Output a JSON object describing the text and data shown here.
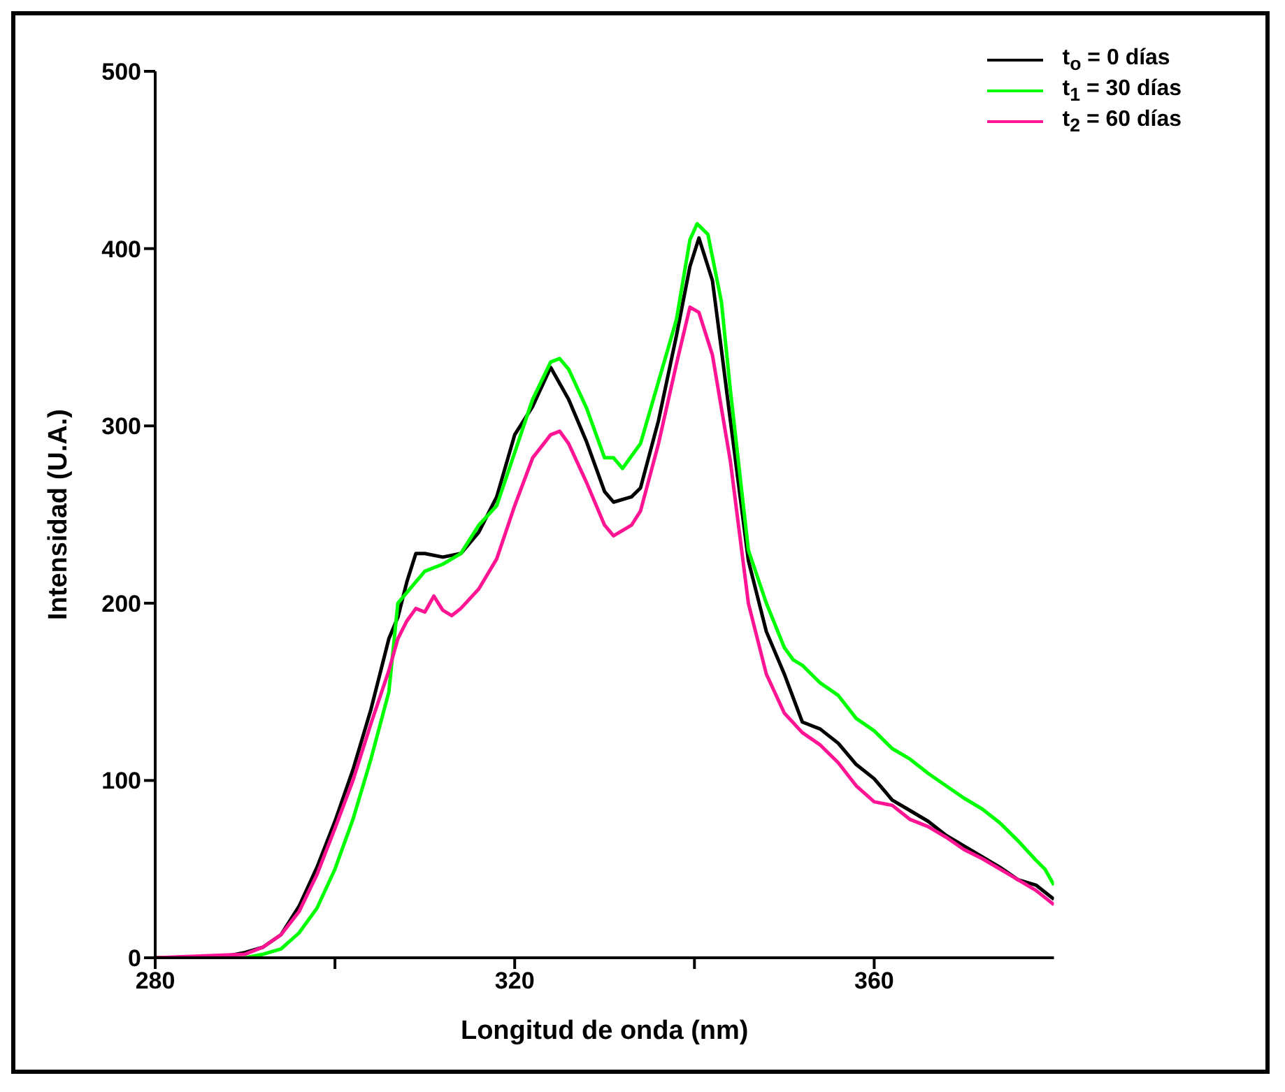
{
  "chart_data": {
    "type": "line",
    "xlabel": "Longitud de onda (nm)",
    "ylabel": "Intensidad (U.A.)",
    "xlim": [
      280,
      380
    ],
    "xticks": [
      280,
      {
        "value": 300,
        "label": null
      },
      320,
      {
        "value": 340,
        "label": null
      },
      360
    ],
    "ylim": [
      0,
      500
    ],
    "yticks": [
      0,
      100,
      200,
      300,
      400,
      500
    ],
    "legend": "top right",
    "marker": "none",
    "line_style": "solid",
    "series": [
      {
        "name": "t$_{o}$ = 0 días",
        "color": "#000000",
        "x": [
          280,
          288,
          290,
          292,
          294,
          296,
          298,
          300,
          302,
          304,
          306,
          307,
          308,
          309,
          310,
          312,
          314,
          316,
          318,
          320,
          322,
          324,
          326,
          328,
          330,
          331,
          333,
          334,
          336,
          338,
          339.5,
          340.5,
          342,
          343,
          344,
          346,
          348,
          350,
          352,
          354,
          356,
          358,
          360,
          362,
          364,
          366,
          368,
          370,
          372,
          374,
          376,
          378,
          380
        ],
        "values": [
          0,
          1,
          3,
          6,
          13,
          29,
          51,
          77,
          106,
          140,
          180,
          192,
          212,
          228,
          228,
          226,
          228,
          240,
          260,
          295,
          311,
          333,
          315,
          291,
          263,
          257,
          260,
          265,
          303,
          351,
          390,
          406,
          382,
          343,
          303,
          224,
          184,
          160,
          133,
          129,
          121,
          109,
          101,
          89,
          83,
          77,
          69,
          63,
          57,
          51,
          44,
          41,
          33
        ]
      },
      {
        "name": "t$_{1}$ = 30 días",
        "color": "#00ff00",
        "x": [
          280,
          290,
          292,
          294,
          296,
          298,
          300,
          302,
          304,
          306,
          307,
          309,
          310,
          312,
          314,
          316,
          318,
          320,
          322,
          324,
          325,
          326,
          328,
          330,
          331,
          332,
          334,
          336,
          338,
          339.5,
          340.3,
          341.5,
          343,
          344,
          346,
          348,
          350,
          351,
          352,
          354,
          356,
          358,
          360,
          362,
          364,
          366,
          368,
          370,
          372,
          374,
          376,
          378,
          379,
          380
        ],
        "values": [
          0,
          0,
          2,
          5,
          14,
          28,
          50,
          78,
          112,
          150,
          200,
          212,
          218,
          222,
          228,
          244,
          255,
          285,
          315,
          336,
          338,
          332,
          310,
          282,
          282,
          276,
          290,
          325,
          360,
          405,
          414,
          408,
          370,
          320,
          230,
          200,
          175,
          168,
          165,
          155,
          148,
          135,
          128,
          118,
          112,
          104,
          97,
          90,
          84,
          76,
          66,
          55,
          50,
          41
        ]
      },
      {
        "name": "t$_{2}$ = 60 días",
        "color": "#ff1493",
        "x": [
          280,
          290,
          292,
          294,
          296,
          298,
          300,
          302,
          304,
          306,
          307,
          308,
          309,
          310,
          311,
          312,
          313,
          314,
          316,
          318,
          320,
          322,
          324,
          325,
          326,
          328,
          330,
          331,
          333,
          334,
          336,
          338,
          339.5,
          340.5,
          342,
          344,
          346,
          348,
          350,
          352,
          354,
          356,
          358,
          360,
          362,
          364,
          366,
          368,
          370,
          372,
          374,
          376,
          378,
          380
        ],
        "values": [
          0,
          2,
          6,
          13,
          26,
          47,
          73,
          100,
          132,
          162,
          180,
          190,
          197,
          195,
          204,
          196,
          193,
          197,
          208,
          225,
          255,
          282,
          295,
          297,
          290,
          268,
          244,
          238,
          244,
          252,
          290,
          335,
          367,
          364,
          340,
          280,
          200,
          160,
          138,
          127,
          120,
          110,
          97,
          88,
          86,
          78,
          74,
          68,
          61,
          56,
          50,
          44,
          38,
          30
        ]
      }
    ]
  }
}
